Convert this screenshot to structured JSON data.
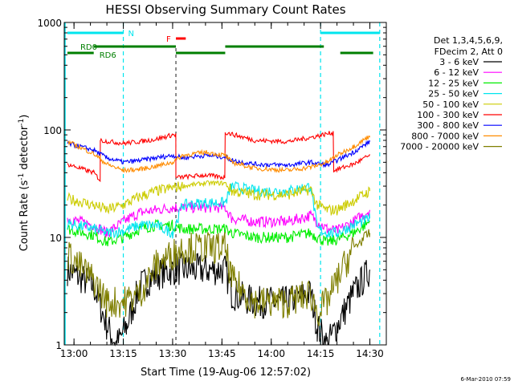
{
  "colors": {
    "frame": "#000000",
    "night": "#00e5ee",
    "saa": "#007f00",
    "flare": "#ff0000"
  },
  "chart_data": {
    "type": "line",
    "title": "HESSI Observing Summary Count Rates",
    "xlabel": "Start Time (19-Aug-06 12:57:02)",
    "ylabel_main": "Count Rate (s",
    "ylabel_sup1": "-1",
    "ylabel_mid": " detector",
    "ylabel_sup2": "-1",
    "ylabel_end": ")",
    "date_stamp": "6-Mar-2010 07:59",
    "y_scale": "log",
    "ylim": [
      1,
      1000
    ],
    "xlim": [
      "12:57:02",
      "14:35:00"
    ],
    "x_ticks": [
      "13:00",
      "13:15",
      "13:30",
      "13:45",
      "14:00",
      "14:15",
      "14:30"
    ],
    "y_ticks": [
      "1",
      "10",
      "100",
      "1000"
    ],
    "legend_header": [
      "Det 1,3,4,5,6,9,",
      "FDecim 2, Att 0"
    ],
    "series": [
      {
        "name": "3 - 6 keV",
        "color": "#000000",
        "points": [
          [
            "12:58",
            5
          ],
          [
            "13:06",
            3.5
          ],
          [
            "13:10",
            1.5
          ],
          [
            "13:13",
            1
          ],
          [
            "13:16",
            1.5
          ],
          [
            "13:20",
            3.5
          ],
          [
            "13:25",
            4.5
          ],
          [
            "13:30",
            5
          ],
          [
            "13:33",
            5
          ],
          [
            "13:40",
            5
          ],
          [
            "13:46",
            5
          ],
          [
            "13:48",
            3
          ],
          [
            "13:55",
            2.5
          ],
          [
            "14:05",
            2.5
          ],
          [
            "14:12",
            3
          ],
          [
            "14:14",
            1.5
          ],
          [
            "14:17",
            1
          ],
          [
            "14:20",
            1.5
          ],
          [
            "14:25",
            3
          ],
          [
            "14:30",
            5
          ]
        ]
      },
      {
        "name": "6 - 12 keV",
        "color": "#ff00ff",
        "points": [
          [
            "12:58",
            15
          ],
          [
            "13:06",
            13
          ],
          [
            "13:10",
            11
          ],
          [
            "13:15",
            14
          ],
          [
            "13:20",
            17
          ],
          [
            "13:25",
            18
          ],
          [
            "13:30",
            19
          ],
          [
            "13:33",
            19
          ],
          [
            "13:40",
            19
          ],
          [
            "13:46",
            19
          ],
          [
            "13:48",
            15
          ],
          [
            "13:55",
            14
          ],
          [
            "14:05",
            14
          ],
          [
            "14:12",
            16
          ],
          [
            "14:14",
            14
          ],
          [
            "14:17",
            12
          ],
          [
            "14:20",
            11.5
          ],
          [
            "14:25",
            14
          ],
          [
            "14:30",
            18
          ]
        ]
      },
      {
        "name": "12 - 25 keV",
        "color": "#00ee00",
        "points": [
          [
            "12:58",
            12
          ],
          [
            "13:06",
            10.5
          ],
          [
            "13:10",
            9
          ],
          [
            "13:15",
            10
          ],
          [
            "13:20",
            12
          ],
          [
            "13:25",
            13
          ],
          [
            "13:30",
            13
          ],
          [
            "13:33",
            12
          ],
          [
            "13:40",
            12
          ],
          [
            "13:46",
            12
          ],
          [
            "13:48",
            11
          ],
          [
            "13:55",
            10
          ],
          [
            "14:05",
            10
          ],
          [
            "14:12",
            11
          ],
          [
            "14:14",
            10
          ],
          [
            "14:17",
            9
          ],
          [
            "14:20",
            9.5
          ],
          [
            "14:25",
            11
          ],
          [
            "14:30",
            14
          ]
        ]
      },
      {
        "name": "25 - 50 keV",
        "color": "#00e5ee",
        "points": [
          [
            "12:58",
            13.5
          ],
          [
            "13:06",
            12
          ],
          [
            "13:10",
            11
          ],
          [
            "13:15",
            11.5
          ],
          [
            "13:20",
            13
          ],
          [
            "13:25",
            13
          ],
          [
            "13:30",
            11
          ],
          [
            "13:33",
            20
          ],
          [
            "13:40",
            21
          ],
          [
            "13:46",
            21
          ],
          [
            "13:48",
            30
          ],
          [
            "13:55",
            27
          ],
          [
            "14:05",
            27
          ],
          [
            "14:12",
            30
          ],
          [
            "14:14",
            12
          ],
          [
            "14:17",
            11
          ],
          [
            "14:20",
            11
          ],
          [
            "14:25",
            13
          ],
          [
            "14:30",
            15
          ]
        ]
      },
      {
        "name": "50 - 100 keV",
        "color": "#cccc00",
        "points": [
          [
            "12:58",
            23
          ],
          [
            "13:06",
            20
          ],
          [
            "13:10",
            18
          ],
          [
            "13:15",
            20
          ],
          [
            "13:20",
            24
          ],
          [
            "13:25",
            27
          ],
          [
            "13:30",
            29
          ],
          [
            "13:33",
            30
          ],
          [
            "13:40",
            32
          ],
          [
            "13:46",
            32
          ],
          [
            "13:48",
            27
          ],
          [
            "13:55",
            25
          ],
          [
            "14:05",
            25
          ],
          [
            "14:12",
            28
          ],
          [
            "14:14",
            20
          ],
          [
            "14:17",
            18
          ],
          [
            "14:20",
            18
          ],
          [
            "14:25",
            22
          ],
          [
            "14:30",
            27
          ]
        ]
      },
      {
        "name": "100 - 300 keV",
        "color": "#ff0000",
        "points": [
          [
            "12:58",
            48
          ],
          [
            "13:06",
            40
          ],
          [
            "13:08",
            34
          ],
          [
            "13:08",
            80
          ],
          [
            "13:15",
            75
          ],
          [
            "13:20",
            78
          ],
          [
            "13:25",
            82
          ],
          [
            "13:30",
            90
          ],
          [
            "13:31",
            90
          ],
          [
            "13:31",
            36
          ],
          [
            "13:40",
            38
          ],
          [
            "13:46",
            36
          ],
          [
            "13:46",
            95
          ],
          [
            "13:55",
            80
          ],
          [
            "14:05",
            78
          ],
          [
            "14:12",
            85
          ],
          [
            "14:19",
            95
          ],
          [
            "14:19",
            42
          ],
          [
            "14:25",
            48
          ],
          [
            "14:30",
            58
          ]
        ]
      },
      {
        "name": "300 - 800 keV",
        "color": "#0000ff",
        "points": [
          [
            "12:58",
            75
          ],
          [
            "13:06",
            65
          ],
          [
            "13:10",
            55
          ],
          [
            "13:15",
            50
          ],
          [
            "13:20",
            52
          ],
          [
            "13:25",
            55
          ],
          [
            "13:30",
            58
          ],
          [
            "13:33",
            55
          ],
          [
            "13:40",
            58
          ],
          [
            "13:46",
            56
          ],
          [
            "13:48",
            52
          ],
          [
            "13:55",
            48
          ],
          [
            "14:05",
            47
          ],
          [
            "14:12",
            50
          ],
          [
            "14:17",
            47
          ],
          [
            "14:20",
            52
          ],
          [
            "14:25",
            62
          ],
          [
            "14:30",
            78
          ]
        ]
      },
      {
        "name": "800 - 7000 keV",
        "color": "#ff8c00",
        "points": [
          [
            "12:58",
            78
          ],
          [
            "13:06",
            60
          ],
          [
            "13:10",
            48
          ],
          [
            "13:15",
            42
          ],
          [
            "13:20",
            43
          ],
          [
            "13:25",
            46
          ],
          [
            "13:30",
            50
          ],
          [
            "13:33",
            58
          ],
          [
            "13:40",
            62
          ],
          [
            "13:46",
            58
          ],
          [
            "13:48",
            50
          ],
          [
            "13:55",
            44
          ],
          [
            "14:05",
            42
          ],
          [
            "14:12",
            45
          ],
          [
            "14:17",
            50
          ],
          [
            "14:20",
            58
          ],
          [
            "14:25",
            70
          ],
          [
            "14:30",
            88
          ]
        ]
      },
      {
        "name": "7000 - 20000 keV",
        "color": "#7f7f00",
        "points": [
          [
            "12:58",
            7
          ],
          [
            "13:06",
            4
          ],
          [
            "13:10",
            2.5
          ],
          [
            "13:15",
            2.5
          ],
          [
            "13:20",
            3
          ],
          [
            "13:25",
            5.5
          ],
          [
            "13:30",
            7
          ],
          [
            "13:33",
            8
          ],
          [
            "13:40",
            8
          ],
          [
            "13:46",
            8
          ],
          [
            "13:48",
            4
          ],
          [
            "13:55",
            2.5
          ],
          [
            "14:05",
            2.5
          ],
          [
            "14:12",
            3
          ],
          [
            "14:14",
            2
          ],
          [
            "14:17",
            2.5
          ],
          [
            "14:20",
            4
          ],
          [
            "14:25",
            8
          ],
          [
            "14:30",
            11
          ]
        ]
      }
    ],
    "annotations": {
      "night_label": "N",
      "flare_label": "F",
      "rd0_label": "RD0",
      "rd6_label": "RD6",
      "night_bars": [
        [
          "12:58",
          "13:15"
        ],
        [
          "14:15",
          "14:33"
        ]
      ],
      "night_lines": [
        "13:15",
        "14:15",
        "14:33"
      ],
      "flare_bar": [
        "13:31",
        "13:34"
      ],
      "saa_bars": [
        [
          "12:58",
          "13:06"
        ],
        [
          "13:06",
          "13:31"
        ],
        [
          "13:31",
          "13:46"
        ],
        [
          "13:46",
          "14:16"
        ],
        [
          "14:21",
          "14:31"
        ]
      ],
      "saa_lines": [
        "13:31"
      ]
    }
  }
}
